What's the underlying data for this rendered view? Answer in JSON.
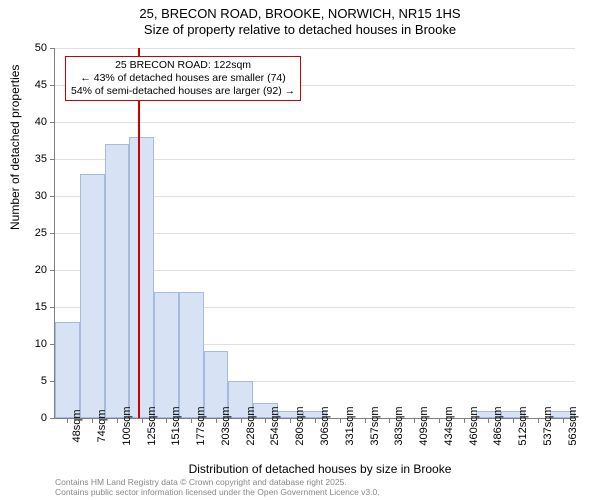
{
  "title": {
    "line1": "25, BRECON ROAD, BROOKE, NORWICH, NR15 1HS",
    "line2": "Size of property relative to detached houses in Brooke"
  },
  "chart": {
    "type": "histogram",
    "x_categories": [
      "48sqm",
      "74sqm",
      "100sqm",
      "125sqm",
      "151sqm",
      "177sqm",
      "203sqm",
      "228sqm",
      "254sqm",
      "280sqm",
      "306sqm",
      "331sqm",
      "357sqm",
      "383sqm",
      "409sqm",
      "434sqm",
      "460sqm",
      "486sqm",
      "512sqm",
      "537sqm",
      "563sqm"
    ],
    "values": [
      13,
      33,
      37,
      38,
      17,
      17,
      9,
      5,
      2,
      1,
      1,
      0,
      0,
      0,
      0,
      0,
      0,
      1,
      1,
      0,
      1
    ],
    "bar_fill": "#d7e3f4",
    "bar_stroke": "#a6bbdf",
    "ylim": [
      0,
      50
    ],
    "ytick_step": 5,
    "yticks": [
      0,
      5,
      10,
      15,
      20,
      25,
      30,
      35,
      40,
      45,
      50
    ],
    "grid_color": "#e0e0e0",
    "background_color": "#ffffff",
    "marker": {
      "position_index": 2.88,
      "color": "#cc0000",
      "box_lines": [
        "25 BRECON ROAD: 122sqm",
        "← 43% of detached houses are smaller (74)",
        "54% of semi-detached houses are larger (92) →"
      ]
    },
    "y_axis_label": "Number of detached properties",
    "x_axis_label": "Distribution of detached houses by size in Brooke",
    "title_fontsize": 13,
    "axis_label_fontsize": 12,
    "tick_fontsize": 11
  },
  "footer": {
    "line1": "Contains HM Land Registry data © Crown copyright and database right 2025.",
    "line2": "Contains public sector information licensed under the Open Government Licence v3.0."
  }
}
